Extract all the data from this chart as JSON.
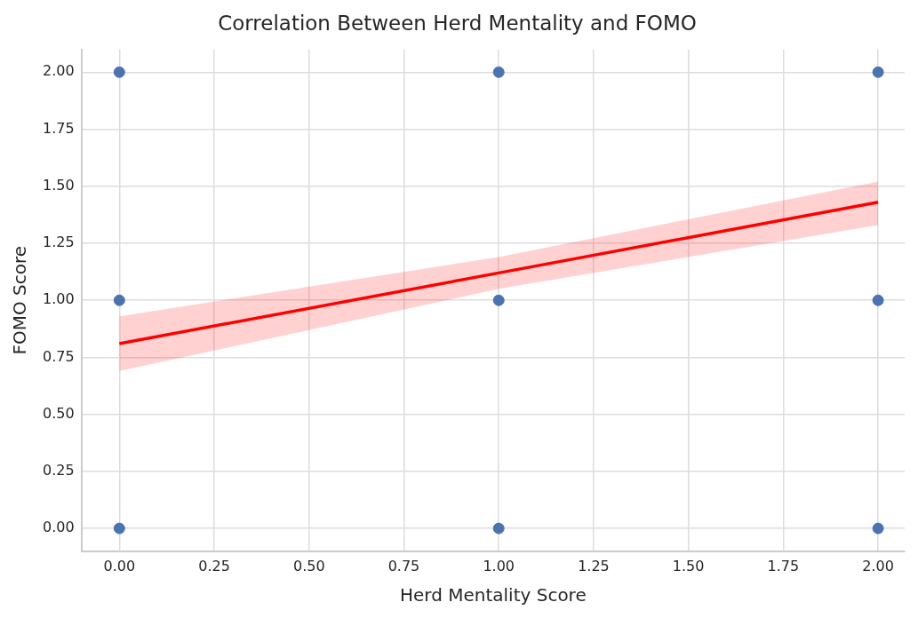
{
  "chart_data": {
    "type": "scatter",
    "title": "Correlation Between Herd Mentality and FOMO",
    "xlabel": "Herd Mentality Score",
    "ylabel": "FOMO Score",
    "xlim": [
      -0.1,
      2.07
    ],
    "ylim": [
      -0.1,
      2.1
    ],
    "xticks": [
      {
        "value": 0,
        "label": "0.00"
      },
      {
        "value": 0.25,
        "label": "0.25"
      },
      {
        "value": 0.5,
        "label": "0.50"
      },
      {
        "value": 0.75,
        "label": "0.75"
      },
      {
        "value": 1,
        "label": "1.00"
      },
      {
        "value": 1.25,
        "label": "1.25"
      },
      {
        "value": 1.5,
        "label": "1.50"
      },
      {
        "value": 1.75,
        "label": "1.75"
      },
      {
        "value": 2,
        "label": "2.00"
      }
    ],
    "yticks": [
      {
        "value": 0,
        "label": "0.00"
      },
      {
        "value": 0.25,
        "label": "0.25"
      },
      {
        "value": 0.5,
        "label": "0.50"
      },
      {
        "value": 0.75,
        "label": "0.75"
      },
      {
        "value": 1,
        "label": "1.00"
      },
      {
        "value": 1.25,
        "label": "1.25"
      },
      {
        "value": 1.5,
        "label": "1.50"
      },
      {
        "value": 1.75,
        "label": "1.75"
      },
      {
        "value": 2,
        "label": "2.00"
      }
    ],
    "grid": true,
    "series": [
      {
        "marker": "circle",
        "color": "#4c72b0",
        "x": [
          0,
          0,
          0,
          1,
          1,
          1,
          2,
          2,
          2
        ],
        "values": [
          0,
          1,
          2,
          0,
          1,
          2,
          0,
          1,
          2
        ]
      },
      {
        "type": "line",
        "color": "#ff0000",
        "x": [
          0,
          1,
          2
        ],
        "values": [
          0.81,
          1.12,
          1.43
        ],
        "lower": [
          0.69,
          1.05,
          1.33
        ],
        "upper": [
          0.93,
          1.19,
          1.52
        ]
      }
    ]
  }
}
